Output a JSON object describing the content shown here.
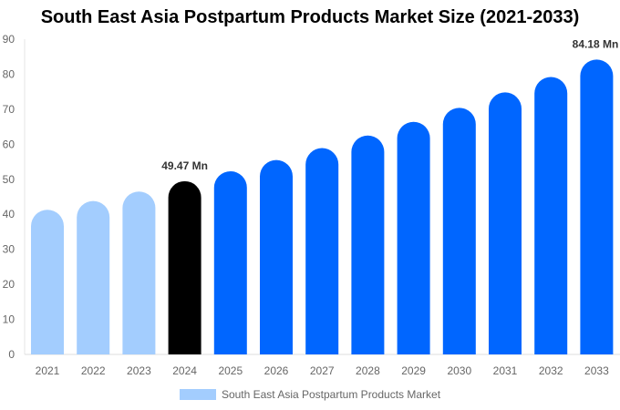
{
  "chart_data": {
    "type": "bar",
    "title": "South East Asia Postpartum Products Market Size (2021-2033)",
    "categories": [
      "2021",
      "2022",
      "2023",
      "2024",
      "2025",
      "2026",
      "2027",
      "2028",
      "2029",
      "2030",
      "2031",
      "2032",
      "2033"
    ],
    "series": [
      {
        "name": "South East Asia Postpartum Products Market",
        "values": [
          41.3,
          43.8,
          46.5,
          49.47,
          52.3,
          55.5,
          58.9,
          62.5,
          66.4,
          70.4,
          74.8,
          79.2,
          84.18
        ]
      }
    ],
    "data_labels": [
      {
        "category": "2024",
        "text": "49.47 Mn"
      },
      {
        "category": "2033",
        "text": "84.18 Mn"
      }
    ],
    "ylim": [
      0,
      90
    ],
    "yticks": [
      0,
      10,
      20,
      30,
      40,
      50,
      60,
      70,
      80,
      90
    ],
    "grid": false,
    "legend": "bottom",
    "colors": {
      "historical": "#a3cdfe",
      "base_year": "#000000",
      "forecast": "#0066ff"
    }
  }
}
